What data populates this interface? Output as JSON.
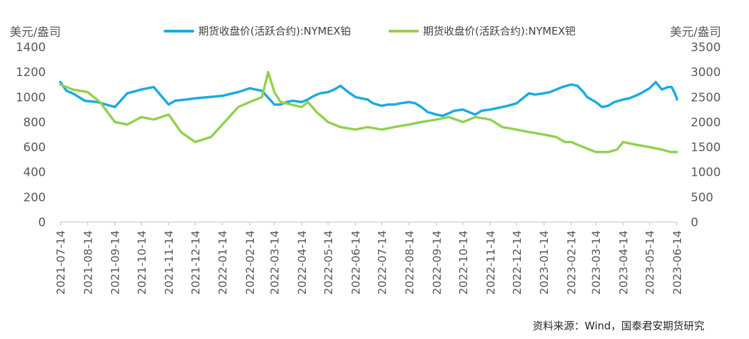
{
  "chart_data": {
    "type": "line",
    "title": "",
    "source": "资料来源：Wind，国泰君安期货研究",
    "y_left": {
      "label": "美元/盎司",
      "ticks": [
        "0",
        "200",
        "400",
        "600",
        "800",
        "1000",
        "1200",
        "1400"
      ],
      "range": [
        0,
        1400
      ]
    },
    "y_right": {
      "label": "美元/盎司",
      "ticks": [
        "0",
        "500",
        "1000",
        "1500",
        "2000",
        "2500",
        "3000",
        "3500"
      ],
      "range": [
        0,
        3500
      ]
    },
    "x_ticks": [
      "2021-07-14",
      "2021-08-14",
      "2021-09-14",
      "2021-10-14",
      "2021-11-14",
      "2021-12-14",
      "2022-01-14",
      "2022-02-14",
      "2022-03-14",
      "2022-04-14",
      "2022-05-14",
      "2022-06-14",
      "2022-07-14",
      "2022-08-14",
      "2022-09-14",
      "2022-10-14",
      "2022-11-14",
      "2022-12-14",
      "2023-01-14",
      "2023-02-14",
      "2023-03-14",
      "2023-04-14",
      "2023-05-14",
      "2023-06-14"
    ],
    "series": [
      {
        "name": "期货收盘价(活跃合约):NYMEX铂",
        "axis": "left",
        "color": "#1AAAE2",
        "values": [
          1120,
          1050,
          1030,
          1000,
          970,
          960,
          920,
          1030,
          1060,
          1080,
          940,
          970,
          980,
          990,
          1010,
          1040,
          1070,
          1050,
          940,
          940,
          960,
          970,
          960,
          980,
          1010,
          1030,
          1040,
          1060,
          1090,
          1050,
          1000,
          990,
          980,
          950,
          930,
          940,
          940,
          950,
          960,
          950,
          920,
          880,
          860,
          850,
          870,
          890,
          900,
          880,
          860,
          890,
          900,
          910,
          920,
          930,
          950,
          990,
          1030,
          1020,
          1030,
          1040,
          1060,
          1080,
          1100,
          1090,
          1040,
          1000,
          960,
          920,
          930,
          960,
          980,
          990,
          1010,
          1030,
          1070,
          1120,
          1060,
          1080,
          1080,
          1040,
          990,
          980
        ],
        "x": [
          "2021-07-14",
          "2021-07-21",
          "2021-07-28",
          "2021-08-04",
          "2021-08-11",
          "2021-08-25",
          "2021-09-14",
          "2021-09-28",
          "2021-10-14",
          "2021-10-28",
          "2021-11-14",
          "2021-11-21",
          "2021-12-04",
          "2021-12-14",
          "2022-01-14",
          "2022-02-01",
          "2022-02-14",
          "2022-02-28",
          "2022-03-14",
          "2022-03-21",
          "2022-03-28",
          "2022-04-04",
          "2022-04-14",
          "2022-04-21",
          "2022-04-28",
          "2022-05-05",
          "2022-05-14",
          "2022-05-21",
          "2022-05-28",
          "2022-06-04",
          "2022-06-14",
          "2022-06-21",
          "2022-06-28",
          "2022-07-04",
          "2022-07-14",
          "2022-07-21",
          "2022-07-28",
          "2022-08-04",
          "2022-08-14",
          "2022-08-21",
          "2022-08-28",
          "2022-09-04",
          "2022-09-14",
          "2022-09-21",
          "2022-09-28",
          "2022-10-04",
          "2022-10-14",
          "2022-10-21",
          "2022-10-28",
          "2022-11-04",
          "2022-11-14",
          "2022-11-21",
          "2022-11-28",
          "2022-12-04",
          "2022-12-14",
          "2022-12-21",
          "2022-12-28",
          "2023-01-04",
          "2023-01-14",
          "2023-01-21",
          "2023-01-28",
          "2023-02-04",
          "2023-02-14",
          "2023-02-21",
          "2023-02-28",
          "2023-03-04",
          "2023-03-14",
          "2023-03-21",
          "2023-03-28",
          "2023-04-04",
          "2023-04-14",
          "2023-04-21",
          "2023-04-28",
          "2023-05-04",
          "2023-05-14",
          "2023-05-21",
          "2023-05-28",
          "2023-06-04",
          "2023-06-08",
          "2023-06-11",
          "2023-06-14",
          "2023-06-14"
        ]
      },
      {
        "name": "期货收盘价(活跃合约):NYMEX钯",
        "axis": "right",
        "color": "#92D050",
        "values": [
          2750,
          2700,
          2650,
          2600,
          2500,
          2400,
          2000,
          1950,
          2100,
          2050,
          2150,
          1800,
          1600,
          1700,
          1950,
          2300,
          2400,
          2500,
          3000,
          2600,
          2400,
          2300,
          2400,
          2200,
          2000,
          1900,
          1850,
          1900,
          1850,
          1900,
          1950,
          2000,
          2050,
          2100,
          2000,
          2100,
          2050,
          1900,
          1850,
          1800,
          1750,
          1700,
          1600,
          1600,
          1550,
          1500,
          1450,
          1400,
          1400,
          1400,
          1450,
          1600,
          1550,
          1500,
          1450,
          1400,
          1400
        ],
        "x": [
          "2021-07-14",
          "2021-07-21",
          "2021-07-28",
          "2021-08-14",
          "2021-08-21",
          "2021-08-28",
          "2021-09-14",
          "2021-09-28",
          "2021-10-14",
          "2021-10-28",
          "2021-11-14",
          "2021-11-28",
          "2021-12-14",
          "2022-01-01",
          "2022-01-14",
          "2022-02-01",
          "2022-02-14",
          "2022-02-28",
          "2022-03-07",
          "2022-03-14",
          "2022-03-21",
          "2022-04-14",
          "2022-04-21",
          "2022-05-01",
          "2022-05-14",
          "2022-05-28",
          "2022-06-14",
          "2022-06-28",
          "2022-07-14",
          "2022-07-28",
          "2022-08-14",
          "2022-08-28",
          "2022-09-14",
          "2022-09-28",
          "2022-10-14",
          "2022-10-28",
          "2022-11-14",
          "2022-11-28",
          "2022-12-14",
          "2022-12-28",
          "2023-01-14",
          "2023-01-28",
          "2023-02-07",
          "2023-02-14",
          "2023-02-21",
          "2023-02-28",
          "2023-03-07",
          "2023-03-14",
          "2023-03-21",
          "2023-03-28",
          "2023-04-07",
          "2023-04-14",
          "2023-04-28",
          "2023-05-14",
          "2023-05-28",
          "2023-06-07",
          "2023-06-14"
        ]
      }
    ]
  }
}
